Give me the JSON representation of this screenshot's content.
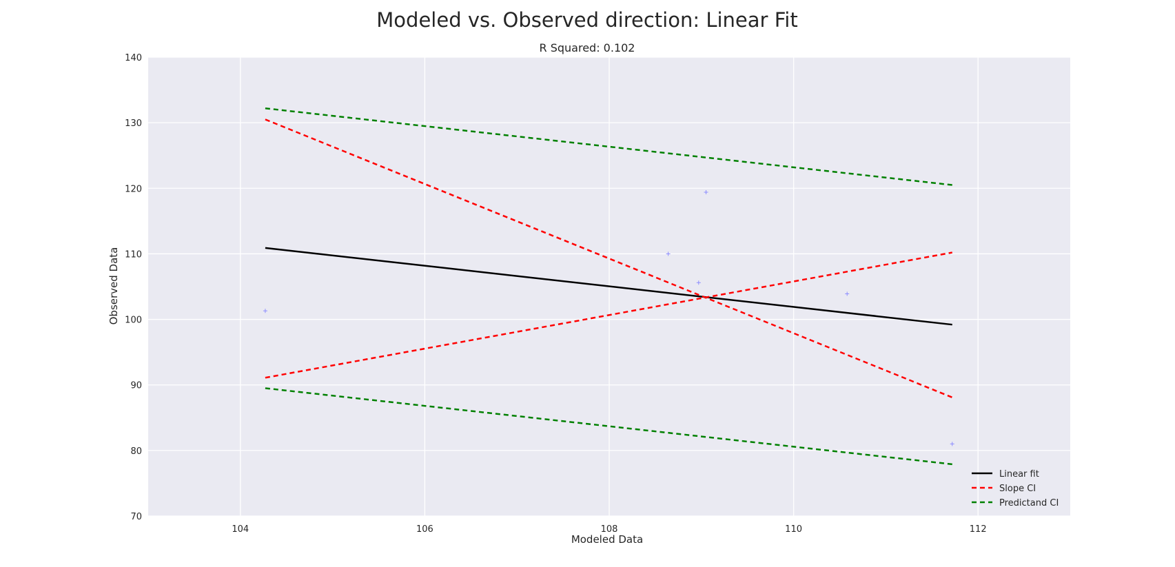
{
  "chart_data": {
    "type": "scatter",
    "title": "Modeled vs. Observed direction: Linear Fit",
    "subtitle": "R Squared: 0.102",
    "xlabel": "Modeled Data",
    "ylabel": "Observed Data",
    "xlim": [
      103,
      113
    ],
    "ylim": [
      70,
      140
    ],
    "xticks": [
      104,
      106,
      108,
      110,
      112
    ],
    "yticks": [
      70,
      80,
      90,
      100,
      110,
      120,
      130,
      140
    ],
    "grid": true,
    "legend_position": "bottom-right",
    "colors": {
      "background": "#eaeaf2",
      "grid": "#ffffff",
      "points": "#8c8cff",
      "linear_fit": "#000000",
      "slope_ci": "#ff0000",
      "predictand_ci": "#008000"
    },
    "points": [
      {
        "x": 104.27,
        "y": 101.3
      },
      {
        "x": 108.64,
        "y": 110.0
      },
      {
        "x": 108.97,
        "y": 105.6
      },
      {
        "x": 109.05,
        "y": 119.4
      },
      {
        "x": 110.58,
        "y": 103.9
      },
      {
        "x": 111.72,
        "y": 81.0
      }
    ],
    "series": [
      {
        "name": "Linear fit",
        "style": "solid",
        "color": "#000000",
        "x": [
          104.27,
          111.72
        ],
        "y": [
          110.9,
          99.2
        ]
      },
      {
        "name": "Slope CI",
        "style": "dashed",
        "color": "#ff0000",
        "x": [
          104.27,
          111.72
        ],
        "y": [
          130.5,
          88.1
        ]
      },
      {
        "name": "",
        "style": "dashed",
        "color": "#ff0000",
        "x": [
          104.27,
          111.72
        ],
        "y": [
          91.1,
          110.2
        ]
      },
      {
        "name": "Predictand CI",
        "style": "dashed",
        "color": "#008000",
        "x": [
          104.27,
          111.72
        ],
        "y": [
          132.2,
          120.5
        ]
      },
      {
        "name": "",
        "style": "dashed",
        "color": "#008000",
        "x": [
          104.27,
          111.72
        ],
        "y": [
          89.5,
          77.9
        ]
      }
    ],
    "legend": [
      "Linear fit",
      "Slope CI",
      "Predictand CI"
    ]
  }
}
